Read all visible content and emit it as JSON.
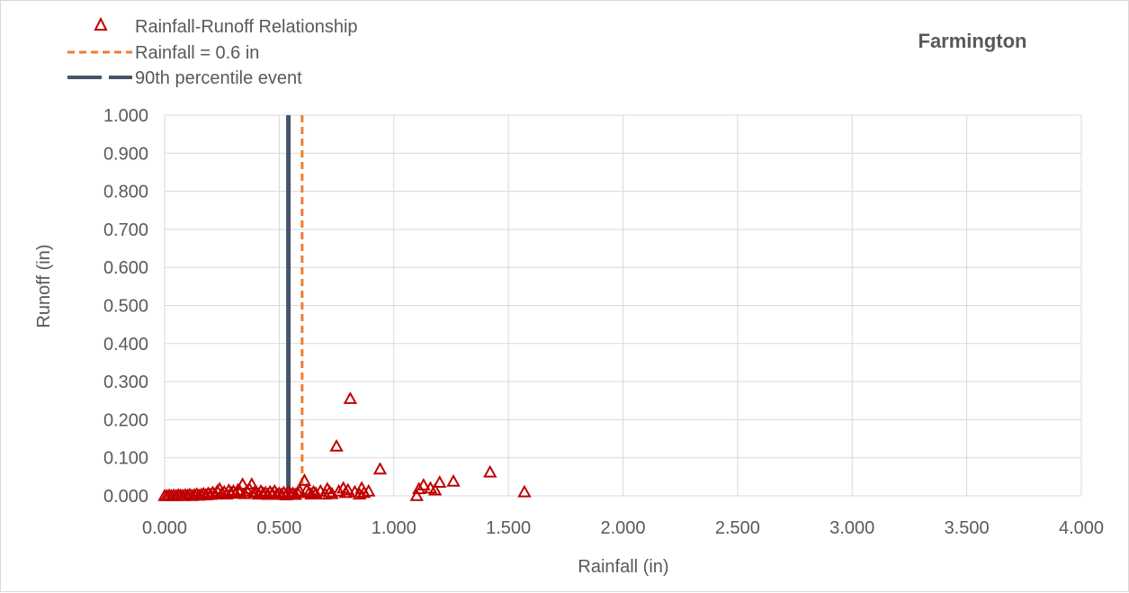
{
  "chart_data": {
    "type": "scatter",
    "title": "Farmington",
    "xlabel": "Rainfall (in)",
    "ylabel": "Runoff (in)",
    "xlim": [
      0,
      4
    ],
    "ylim": [
      0,
      1
    ],
    "x_ticks": [
      "0.000",
      "0.500",
      "1.000",
      "1.500",
      "2.000",
      "2.500",
      "3.000",
      "3.500",
      "4.000"
    ],
    "y_ticks": [
      "0.000",
      "0.100",
      "0.200",
      "0.300",
      "0.400",
      "0.500",
      "0.600",
      "0.700",
      "0.800",
      "0.900",
      "1.000"
    ],
    "grid": true,
    "legend_position": "top-left",
    "colors": {
      "scatter": "#c00000",
      "threshold_line": "#ed7d31",
      "percentile_line": "#44546a",
      "grid": "#d9d9d9"
    },
    "series": [
      {
        "name": "Rainfall-Runoff Relationship",
        "kind": "scatter",
        "marker": "triangle-open",
        "points": [
          [
            0.0,
            0.0
          ],
          [
            0.01,
            0.0
          ],
          [
            0.02,
            0.001
          ],
          [
            0.03,
            0.0
          ],
          [
            0.04,
            0.001
          ],
          [
            0.05,
            0.0
          ],
          [
            0.06,
            0.002
          ],
          [
            0.07,
            0.001
          ],
          [
            0.08,
            0.0
          ],
          [
            0.09,
            0.002
          ],
          [
            0.1,
            0.001
          ],
          [
            0.11,
            0.003
          ],
          [
            0.12,
            0.0
          ],
          [
            0.13,
            0.002
          ],
          [
            0.14,
            0.004
          ],
          [
            0.15,
            0.001
          ],
          [
            0.16,
            0.003
          ],
          [
            0.17,
            0.005
          ],
          [
            0.18,
            0.002
          ],
          [
            0.19,
            0.006
          ],
          [
            0.2,
            0.003
          ],
          [
            0.21,
            0.008
          ],
          [
            0.22,
            0.004
          ],
          [
            0.23,
            0.012
          ],
          [
            0.24,
            0.018
          ],
          [
            0.25,
            0.006
          ],
          [
            0.26,
            0.01
          ],
          [
            0.27,
            0.004
          ],
          [
            0.28,
            0.014
          ],
          [
            0.29,
            0.008
          ],
          [
            0.3,
            0.012
          ],
          [
            0.31,
            0.006
          ],
          [
            0.32,
            0.015
          ],
          [
            0.33,
            0.01
          ],
          [
            0.34,
            0.03
          ],
          [
            0.35,
            0.005
          ],
          [
            0.36,
            0.012
          ],
          [
            0.37,
            0.018
          ],
          [
            0.38,
            0.03
          ],
          [
            0.39,
            0.008
          ],
          [
            0.4,
            0.01
          ],
          [
            0.41,
            0.004
          ],
          [
            0.42,
            0.012
          ],
          [
            0.43,
            0.006
          ],
          [
            0.44,
            0.008
          ],
          [
            0.45,
            0.003
          ],
          [
            0.46,
            0.01
          ],
          [
            0.47,
            0.005
          ],
          [
            0.48,
            0.012
          ],
          [
            0.49,
            0.004
          ],
          [
            0.5,
            0.006
          ],
          [
            0.51,
            0.003
          ],
          [
            0.52,
            0.008
          ],
          [
            0.53,
            0.002
          ],
          [
            0.54,
            0.01
          ],
          [
            0.55,
            0.004
          ],
          [
            0.56,
            0.006
          ],
          [
            0.57,
            0.003
          ],
          [
            0.58,
            0.008
          ],
          [
            0.59,
            0.012
          ],
          [
            0.61,
            0.04
          ],
          [
            0.62,
            0.015
          ],
          [
            0.63,
            0.008
          ],
          [
            0.64,
            0.004
          ],
          [
            0.65,
            0.01
          ],
          [
            0.66,
            0.006
          ],
          [
            0.68,
            0.012
          ],
          [
            0.7,
            0.004
          ],
          [
            0.71,
            0.018
          ],
          [
            0.72,
            0.01
          ],
          [
            0.73,
            0.005
          ],
          [
            0.75,
            0.13
          ],
          [
            0.76,
            0.012
          ],
          [
            0.78,
            0.02
          ],
          [
            0.79,
            0.008
          ],
          [
            0.8,
            0.015
          ],
          [
            0.81,
            0.255
          ],
          [
            0.83,
            0.01
          ],
          [
            0.85,
            0.004
          ],
          [
            0.86,
            0.02
          ],
          [
            0.87,
            0.008
          ],
          [
            0.89,
            0.012
          ],
          [
            0.94,
            0.07
          ],
          [
            1.1,
            0.0
          ],
          [
            1.11,
            0.018
          ],
          [
            1.13,
            0.028
          ],
          [
            1.16,
            0.02
          ],
          [
            1.18,
            0.015
          ],
          [
            1.2,
            0.035
          ],
          [
            1.26,
            0.038
          ],
          [
            1.42,
            0.062
          ],
          [
            1.57,
            0.01
          ]
        ]
      },
      {
        "name": "Rainfall = 0.6 in",
        "kind": "vertical-line",
        "style": "dashed",
        "x": 0.6
      },
      {
        "name": "90th percentile event",
        "kind": "vertical-line",
        "style": "solid",
        "x": 0.54
      }
    ]
  }
}
